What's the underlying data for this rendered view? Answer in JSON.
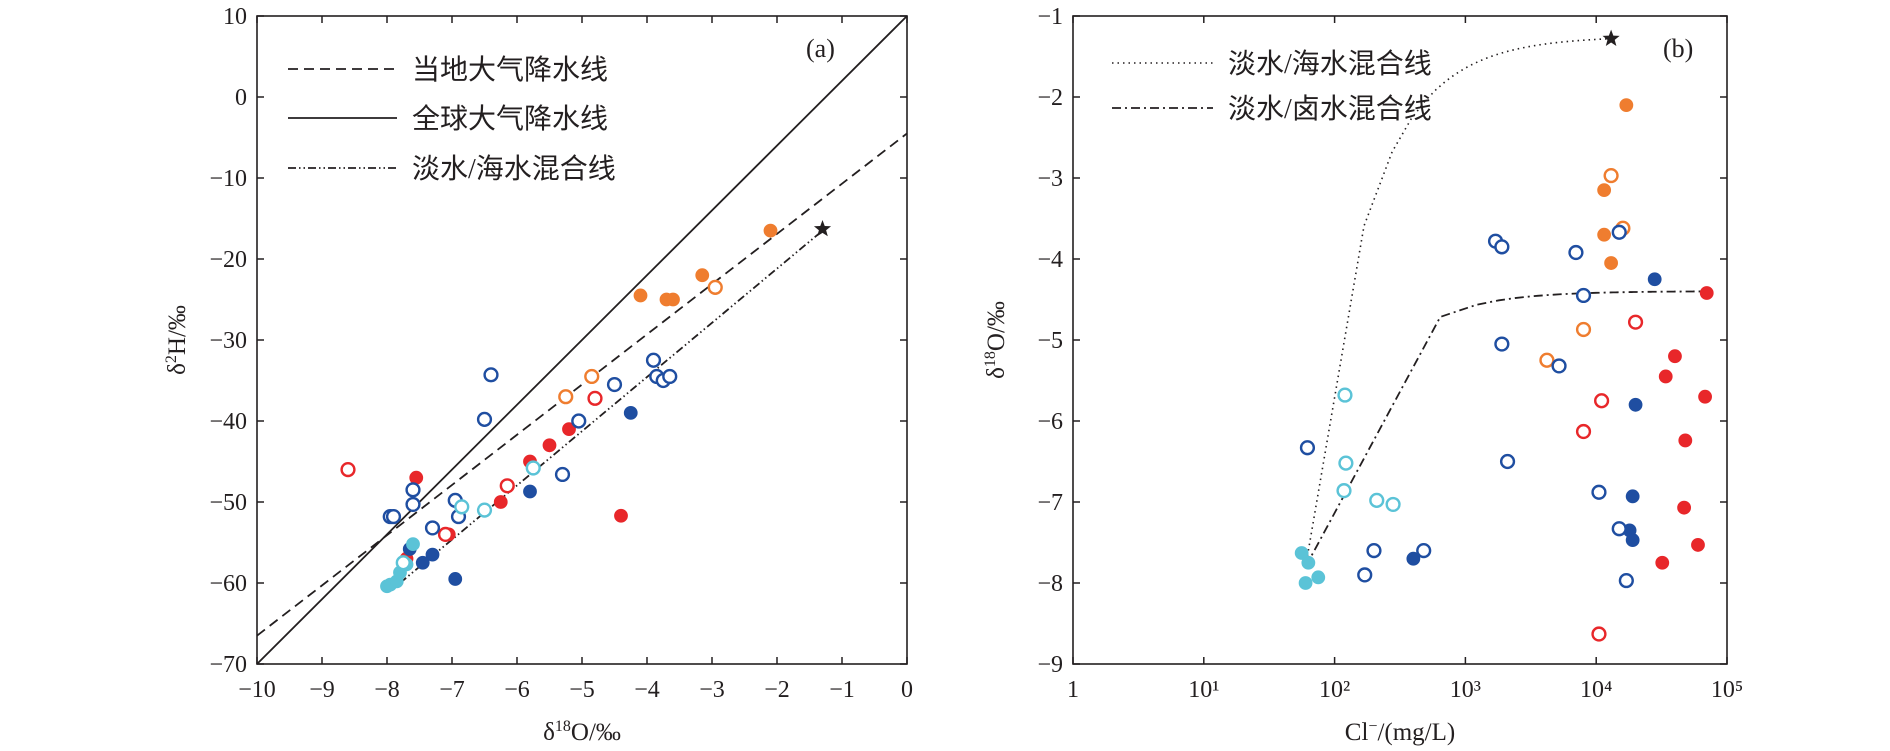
{
  "colors": {
    "orange": "#ef7d2f",
    "red": "#e8272a",
    "blue": "#1f4ea1",
    "cyan": "#5bc3d7",
    "ink": "#231f20"
  },
  "chart_data": [
    {
      "type": "scatter",
      "panel_label": "(a)",
      "xlabel": "δ18O/‰",
      "ylabel": "δ2H/‰",
      "xlim": [
        -10,
        0
      ],
      "ylim": [
        -70,
        10
      ],
      "xticks": [
        -10,
        -9,
        -8,
        -7,
        -6,
        -5,
        -4,
        -3,
        -2,
        -1,
        0
      ],
      "yticks": [
        -70,
        -60,
        -50,
        -40,
        -30,
        -20,
        -10,
        0,
        10
      ],
      "x_tick_labels": [
        "−10",
        "−9",
        "−8",
        "−7",
        "−6",
        "−5",
        "−4",
        "−3",
        "−2",
        "−1",
        "0"
      ],
      "y_tick_labels": [
        "−70",
        "−60",
        "−50",
        "−40",
        "−30",
        "−20",
        "−10",
        "0",
        "10"
      ],
      "legend": [
        {
          "label": "当地大气降水线",
          "style": "dashed"
        },
        {
          "label": "全球大气降水线",
          "style": "solid"
        },
        {
          "label": "淡水/海水混合线",
          "style": "dashdotdot"
        }
      ],
      "lines": [
        {
          "name": "当地大气降水线",
          "style": "dashed",
          "points": [
            [
              -10,
              -66.5
            ],
            [
              0,
              -4.5
            ]
          ]
        },
        {
          "name": "全球大气降水线",
          "style": "solid",
          "points": [
            [
              -10,
              -70
            ],
            [
              0,
              10
            ]
          ]
        },
        {
          "name": "淡水/海水混合线",
          "style": "dashdotdot",
          "points": [
            [
              -7.8,
              -60
            ],
            [
              -1.3,
              -16.5
            ]
          ]
        }
      ],
      "seawater_marker": {
        "x": -1.3,
        "y": -16.3
      },
      "series": [
        {
          "color": "orange",
          "filled": true,
          "points": [
            [
              -4.1,
              -24.5
            ],
            [
              -3.7,
              -25
            ],
            [
              -3.6,
              -25
            ],
            [
              -3.15,
              -22
            ],
            [
              -2.1,
              -16.5
            ]
          ]
        },
        {
          "color": "orange",
          "filled": false,
          "points": [
            [
              -5.25,
              -37
            ],
            [
              -4.85,
              -34.5
            ],
            [
              -2.95,
              -23.5
            ]
          ]
        },
        {
          "color": "red",
          "filled": true,
          "points": [
            [
              -7.55,
              -47
            ],
            [
              -7.7,
              -57
            ],
            [
              -7.05,
              -54
            ],
            [
              -6.25,
              -50
            ],
            [
              -5.8,
              -45
            ],
            [
              -5.5,
              -43
            ],
            [
              -5.2,
              -41
            ],
            [
              -4.4,
              -51.7
            ]
          ]
        },
        {
          "color": "red",
          "filled": false,
          "points": [
            [
              -8.6,
              -46
            ],
            [
              -7.1,
              -54
            ],
            [
              -6.15,
              -48
            ],
            [
              -4.8,
              -37.2
            ]
          ]
        },
        {
          "color": "blue",
          "filled": true,
          "points": [
            [
              -7.65,
              -55.8
            ],
            [
              -7.45,
              -57.5
            ],
            [
              -7.3,
              -56.5
            ],
            [
              -6.95,
              -59.5
            ],
            [
              -5.8,
              -48.7
            ],
            [
              -4.25,
              -39
            ]
          ]
        },
        {
          "color": "blue",
          "filled": false,
          "points": [
            [
              -7.95,
              -51.8
            ],
            [
              -7.9,
              -51.8
            ],
            [
              -7.6,
              -48.5
            ],
            [
              -7.6,
              -50.3
            ],
            [
              -7.3,
              -53.2
            ],
            [
              -6.95,
              -49.8
            ],
            [
              -6.9,
              -51.8
            ],
            [
              -6.5,
              -39.8
            ],
            [
              -6.4,
              -34.3
            ],
            [
              -5.3,
              -46.6
            ],
            [
              -5.05,
              -40
            ],
            [
              -4.5,
              -35.5
            ],
            [
              -3.9,
              -32.5
            ],
            [
              -3.85,
              -34.5
            ],
            [
              -3.75,
              -35
            ],
            [
              -3.65,
              -34.5
            ]
          ]
        },
        {
          "color": "cyan",
          "filled": true,
          "points": [
            [
              -8.0,
              -60.4
            ],
            [
              -7.95,
              -60.2
            ],
            [
              -7.85,
              -59.8
            ],
            [
              -7.8,
              -58.7
            ],
            [
              -7.7,
              -57.7
            ],
            [
              -7.6,
              -55.2
            ]
          ]
        },
        {
          "color": "cyan",
          "filled": false,
          "points": [
            [
              -7.75,
              -57.5
            ],
            [
              -6.85,
              -50.6
            ],
            [
              -6.5,
              -51
            ],
            [
              -5.75,
              -45.8
            ]
          ]
        }
      ]
    },
    {
      "type": "scatter",
      "panel_label": "(b)",
      "xlabel": "Cl−/(mg/L)",
      "ylabel": "δ18O/‰",
      "xscale": "log",
      "xlim": [
        1,
        100000
      ],
      "ylim": [
        -9,
        -1
      ],
      "xticks": [
        1,
        10,
        100,
        1000,
        10000,
        100000
      ],
      "yticks": [
        -9,
        -8,
        -7,
        -6,
        -5,
        -4,
        -3,
        -2,
        -1
      ],
      "x_tick_labels": [
        "1",
        "10¹",
        "10²",
        "10³",
        "10⁴",
        "10⁵"
      ],
      "y_tick_labels": [
        "−9",
        "−8",
        "−7",
        "−6",
        "−5",
        "−4",
        "−3",
        "−2",
        "−1"
      ],
      "legend": [
        {
          "label": "淡水/海水混合线",
          "style": "dotted"
        },
        {
          "label": "淡水/卤水混合线",
          "style": "dashdot"
        }
      ],
      "seawater_marker": {
        "x": 13000,
        "y": -1.28
      },
      "curves": [
        {
          "name": "淡水/海水混合线",
          "style": "dotted",
          "end_member_a": {
            "cl": 60,
            "d18o": -7.8
          },
          "end_member_b": {
            "cl": 13000,
            "d18o": -1.28
          }
        },
        {
          "name": "淡水/卤水混合线",
          "style": "dashdot",
          "end_member_a": {
            "cl": 60,
            "d18o": -7.8
          },
          "end_member_b": {
            "cl": 70000,
            "d18o": -4.4
          }
        }
      ],
      "series": [
        {
          "color": "orange",
          "filled": true,
          "points": [
            [
              17000,
              -2.1
            ],
            [
              11500,
              -3.15
            ],
            [
              11500,
              -3.7
            ],
            [
              13000,
              -4.05
            ]
          ]
        },
        {
          "color": "orange",
          "filled": false,
          "points": [
            [
              13000,
              -2.97
            ],
            [
              16000,
              -3.62
            ],
            [
              8000,
              -4.87
            ],
            [
              4200,
              -5.25
            ]
          ]
        },
        {
          "color": "red",
          "filled": true,
          "points": [
            [
              70000,
              -4.42
            ],
            [
              40000,
              -5.2
            ],
            [
              34000,
              -5.45
            ],
            [
              68000,
              -5.7
            ],
            [
              48000,
              -6.24
            ],
            [
              47000,
              -7.07
            ],
            [
              32000,
              -7.75
            ],
            [
              60000,
              -7.53
            ]
          ]
        },
        {
          "color": "red",
          "filled": false,
          "points": [
            [
              20000,
              -4.78
            ],
            [
              11000,
              -5.75
            ],
            [
              8000,
              -6.13
            ],
            [
              10500,
              -8.63
            ]
          ]
        },
        {
          "color": "blue",
          "filled": true,
          "points": [
            [
              28000,
              -4.25
            ],
            [
              20000,
              -5.8
            ],
            [
              19000,
              -6.93
            ],
            [
              18000,
              -7.35
            ],
            [
              19000,
              -7.47
            ],
            [
              400,
              -7.7
            ]
          ]
        },
        {
          "color": "blue",
          "filled": false,
          "points": [
            [
              1700,
              -3.78
            ],
            [
              1900,
              -3.85
            ],
            [
              7000,
              -3.92
            ],
            [
              15000,
              -3.67
            ],
            [
              8000,
              -4.45
            ],
            [
              1900,
              -5.05
            ],
            [
              5200,
              -5.32
            ],
            [
              2100,
              -6.5
            ],
            [
              10500,
              -6.88
            ],
            [
              15000,
              -7.33
            ],
            [
              17000,
              -7.97
            ],
            [
              480,
              -7.6
            ],
            [
              200,
              -7.6
            ],
            [
              170,
              -7.9
            ],
            [
              62,
              -6.33
            ]
          ]
        },
        {
          "color": "cyan",
          "filled": true,
          "points": [
            [
              56,
              -7.63
            ],
            [
              63,
              -7.75
            ],
            [
              60,
              -8.0
            ],
            [
              75,
              -7.93
            ]
          ]
        },
        {
          "color": "cyan",
          "filled": false,
          "points": [
            [
              120,
              -5.68
            ],
            [
              122,
              -6.52
            ],
            [
              118,
              -6.86
            ],
            [
              210,
              -6.98
            ],
            [
              280,
              -7.03
            ]
          ]
        }
      ]
    }
  ]
}
